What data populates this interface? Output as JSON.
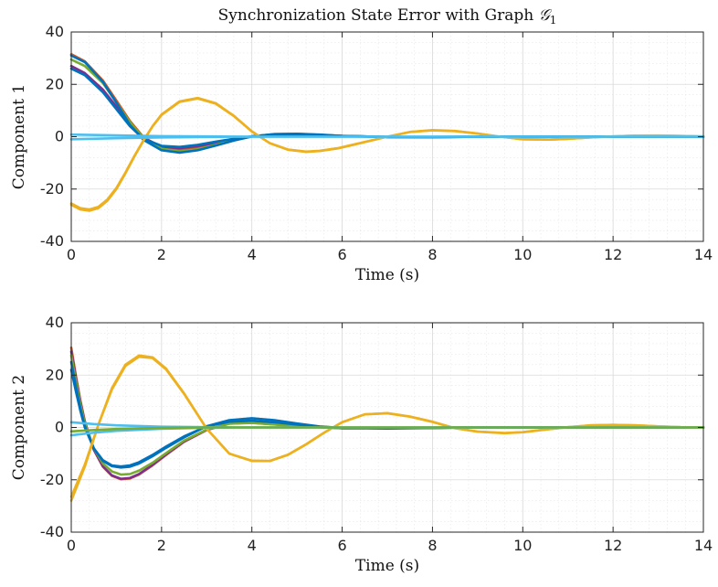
{
  "figure": {
    "title_text": "Synchronization State Error with Graph ",
    "title_symbol": "𝒢",
    "title_subscript": "1"
  },
  "chart_data": [
    {
      "type": "line",
      "title": "Synchronization State Error with Graph 𝒢1",
      "xlabel": "Time (s)",
      "ylabel": "Component 1",
      "xlim": [
        0,
        14
      ],
      "ylim": [
        -40,
        40
      ],
      "xticks": [
        "0",
        "2",
        "4",
        "6",
        "8",
        "10",
        "12",
        "14"
      ],
      "yticks": [
        "-40",
        "-20",
        "0",
        "20",
        "40"
      ],
      "grid": {
        "major": true,
        "minor": true
      },
      "series": [
        {
          "color": "#d95319",
          "x": [
            0,
            0.3,
            0.7,
            1.0,
            1.3,
            1.6,
            2.0,
            2.4,
            2.8,
            3.2,
            3.6,
            4.0,
            4.5,
            5.0,
            5.5,
            6.0,
            7.0,
            8.0,
            9.0,
            10.0,
            11.0,
            12.0,
            13.0,
            14.0
          ],
          "y": [
            31.5,
            28.8,
            21.5,
            13.8,
            6.0,
            -0.2,
            -4.1,
            -5.0,
            -4.3,
            -2.8,
            -1.2,
            0.1,
            0.9,
            1.0,
            0.7,
            0.3,
            -0.1,
            -0.15,
            -0.05,
            0.02,
            0.02,
            0.01,
            0.0,
            0.0
          ]
        },
        {
          "color": "#7e2f8e",
          "x": [
            0,
            0.3,
            0.7,
            1.0,
            1.3,
            1.6,
            2.0,
            2.4,
            2.8,
            3.2,
            3.6,
            4.0,
            4.5,
            5.0,
            5.5,
            6.0,
            7.0,
            8.0,
            9.0,
            10.0,
            11.0,
            12.0,
            13.0,
            14.0
          ],
          "y": [
            27.0,
            24.3,
            18.0,
            11.5,
            5.0,
            -0.4,
            -3.8,
            -4.4,
            -3.6,
            -2.3,
            -1.0,
            0.1,
            0.8,
            0.9,
            0.6,
            0.3,
            -0.1,
            -0.1,
            -0.05,
            0.02,
            0.02,
            0.01,
            0.0,
            0.0
          ]
        },
        {
          "color": "#77ac30",
          "x": [
            0,
            0.3,
            0.7,
            1.0,
            1.3,
            1.6,
            2.0,
            2.4,
            2.8,
            3.2,
            3.6,
            4.0,
            4.5,
            5.0,
            5.5,
            6.0,
            7.0,
            8.0,
            9.0,
            10.0,
            11.0,
            12.0,
            13.0,
            14.0
          ],
          "y": [
            29.5,
            27.0,
            20.5,
            13.0,
            5.5,
            -0.5,
            -4.6,
            -5.6,
            -4.8,
            -3.1,
            -1.3,
            0.1,
            1.0,
            1.1,
            0.7,
            0.3,
            -0.1,
            -0.15,
            -0.05,
            0.02,
            0.02,
            0.01,
            0.0,
            0.0
          ]
        },
        {
          "color": "#0072bd",
          "x": [
            0,
            0.3,
            0.7,
            1.0,
            1.3,
            1.6,
            2.0,
            2.4,
            2.8,
            3.2,
            3.6,
            4.0,
            4.5,
            5.0,
            5.5,
            6.0,
            7.0,
            8.0,
            9.0,
            10.0,
            11.0,
            12.0,
            13.0,
            14.0
          ],
          "y": [
            31.0,
            28.5,
            21.0,
            13.0,
            4.5,
            -1.2,
            -5.2,
            -6.1,
            -5.2,
            -3.4,
            -1.5,
            0.1,
            1.0,
            1.1,
            0.8,
            0.3,
            -0.1,
            -0.15,
            -0.05,
            0.02,
            0.02,
            0.01,
            0.0,
            0.0
          ]
        },
        {
          "color": "#0072bd",
          "x": [
            0,
            0.3,
            0.7,
            1.0,
            1.3,
            1.6,
            2.0,
            2.4,
            2.8,
            3.2,
            3.6,
            4.0,
            4.5,
            5.0,
            5.5,
            6.0,
            7.0,
            8.0,
            9.0,
            10.0,
            11.0,
            12.0,
            13.0,
            14.0
          ],
          "y": [
            26.0,
            23.5,
            17.0,
            10.5,
            4.0,
            -0.8,
            -3.5,
            -3.9,
            -3.1,
            -1.9,
            -0.8,
            0.1,
            0.7,
            0.8,
            0.5,
            0.2,
            -0.1,
            -0.1,
            -0.04,
            0.02,
            0.02,
            0.01,
            0.0,
            0.0
          ]
        },
        {
          "color": "#edb120",
          "x": [
            0,
            0.2,
            0.4,
            0.6,
            0.8,
            1.0,
            1.2,
            1.4,
            1.6,
            1.8,
            2.0,
            2.4,
            2.8,
            3.2,
            3.6,
            4.0,
            4.4,
            4.8,
            5.2,
            5.5,
            5.9,
            6.4,
            7.0,
            7.5,
            8.0,
            8.5,
            9.0,
            9.5,
            10.0,
            10.6,
            11.0,
            11.5,
            12.0,
            12.5,
            13.0,
            13.5,
            14.0
          ],
          "y": [
            -26.0,
            -27.8,
            -28.3,
            -27.3,
            -24.5,
            -20.0,
            -14.0,
            -7.5,
            -1.5,
            4.0,
            8.5,
            13.5,
            14.8,
            12.8,
            8.0,
            2.0,
            -2.5,
            -5.0,
            -5.8,
            -5.5,
            -4.5,
            -2.5,
            0.0,
            1.8,
            2.5,
            2.2,
            1.2,
            0.0,
            -1.0,
            -1.1,
            -0.8,
            -0.3,
            0.1,
            0.4,
            0.45,
            0.3,
            0.1
          ]
        },
        {
          "color": "#edb120",
          "x": [
            0,
            0.2,
            0.4,
            0.6,
            0.8,
            1.0,
            1.2,
            1.4,
            1.6,
            1.8,
            2.0,
            2.4,
            2.8,
            3.2,
            3.6,
            4.0,
            4.4,
            4.8,
            5.2,
            5.5,
            5.9,
            6.4,
            7.0,
            7.5,
            8.0,
            8.5,
            9.0,
            9.5,
            10.0,
            10.6,
            11.0,
            11.5,
            12.0,
            12.5,
            13.0,
            13.5,
            14.0
          ],
          "y": [
            -25.5,
            -27.3,
            -27.8,
            -26.8,
            -24.0,
            -19.6,
            -13.7,
            -7.3,
            -1.4,
            3.9,
            8.3,
            13.3,
            14.6,
            12.6,
            7.9,
            2.0,
            -2.5,
            -4.9,
            -5.7,
            -5.4,
            -4.4,
            -2.4,
            0.0,
            1.8,
            2.4,
            2.1,
            1.2,
            0.0,
            -1.0,
            -1.1,
            -0.8,
            -0.3,
            0.1,
            0.4,
            0.4,
            0.3,
            0.1
          ]
        },
        {
          "color": "#4dbeee",
          "x": [
            0,
            1,
            2,
            3,
            4,
            5,
            6,
            7,
            8,
            9,
            10,
            11,
            12,
            13,
            14
          ],
          "y": [
            -1.0,
            -0.6,
            -0.3,
            -0.1,
            0.0,
            0.0,
            0.0,
            0.0,
            0.0,
            0.0,
            0.0,
            0.0,
            0.0,
            0.0,
            0.0
          ]
        },
        {
          "color": "#4dbeee",
          "x": [
            0,
            1,
            2,
            3,
            4,
            5,
            6,
            7,
            8,
            9,
            10,
            11,
            12,
            13,
            14
          ],
          "y": [
            0.8,
            0.5,
            0.2,
            0.1,
            0.0,
            0.0,
            0.0,
            0.0,
            0.0,
            0.0,
            0.0,
            0.0,
            0.0,
            0.0,
            0.0
          ]
        }
      ]
    },
    {
      "type": "line",
      "xlabel": "Time (s)",
      "ylabel": "Component 2",
      "xlim": [
        0,
        14
      ],
      "ylim": [
        -40,
        40
      ],
      "xticks": [
        "0",
        "2",
        "4",
        "6",
        "8",
        "10",
        "12",
        "14"
      ],
      "yticks": [
        "-40",
        "-20",
        "0",
        "20",
        "40"
      ],
      "grid": {
        "major": true,
        "minor": true
      },
      "series": [
        {
          "color": "#d95319",
          "x": [
            0,
            0.1,
            0.2,
            0.3,
            0.5,
            0.7,
            0.9,
            1.1,
            1.3,
            1.5,
            1.8,
            2.1,
            2.5,
            3.0,
            3.5,
            4.0,
            4.5,
            5.0,
            6.0,
            7.0,
            8.0,
            9.0,
            10.0,
            11.0,
            12.0,
            13.0,
            14.0
          ],
          "y": [
            30.5,
            20.0,
            10.5,
            2.5,
            -8.5,
            -15.0,
            -18.5,
            -19.8,
            -19.5,
            -18.0,
            -14.5,
            -10.5,
            -5.5,
            -1.0,
            1.5,
            1.8,
            1.2,
            0.5,
            -0.3,
            -0.2,
            -0.1,
            0.0,
            0.0,
            0.0,
            0.0,
            0.0,
            0.0
          ]
        },
        {
          "color": "#7e2f8e",
          "x": [
            0,
            0.1,
            0.2,
            0.3,
            0.5,
            0.7,
            0.9,
            1.1,
            1.3,
            1.5,
            1.8,
            2.1,
            2.5,
            3.0,
            3.5,
            4.0,
            4.5,
            5.0,
            6.0,
            7.0,
            8.0,
            9.0,
            10.0,
            11.0,
            12.0,
            13.0,
            14.0
          ],
          "y": [
            29.0,
            19.0,
            9.8,
            2.0,
            -8.5,
            -14.8,
            -18.3,
            -19.6,
            -19.3,
            -17.8,
            -14.3,
            -10.3,
            -5.3,
            -0.9,
            1.5,
            1.8,
            1.2,
            0.5,
            -0.3,
            -0.2,
            -0.1,
            0.0,
            0.0,
            0.0,
            0.0,
            0.0,
            0.0
          ]
        },
        {
          "color": "#77ac30",
          "x": [
            0,
            0.1,
            0.2,
            0.3,
            0.5,
            0.7,
            0.9,
            1.1,
            1.3,
            1.5,
            1.8,
            2.1,
            2.5,
            3.0,
            3.5,
            4.0,
            4.5,
            5.0,
            6.0,
            7.0,
            8.0,
            9.0,
            10.0,
            11.0,
            12.0,
            13.0,
            14.0
          ],
          "y": [
            27.5,
            18.0,
            9.0,
            1.5,
            -8.0,
            -13.8,
            -16.8,
            -18.0,
            -17.8,
            -16.5,
            -13.5,
            -9.8,
            -5.0,
            -0.8,
            1.4,
            1.7,
            1.1,
            0.5,
            -0.3,
            -0.2,
            -0.1,
            0.0,
            0.0,
            0.0,
            0.0,
            0.0,
            0.0
          ]
        },
        {
          "color": "#0072bd",
          "x": [
            0,
            0.1,
            0.2,
            0.3,
            0.5,
            0.7,
            0.9,
            1.1,
            1.3,
            1.5,
            1.8,
            2.1,
            2.5,
            3.0,
            3.5,
            4.0,
            4.5,
            5.0,
            5.5,
            6.0,
            7.0,
            8.0,
            9.0,
            10.0,
            11.0,
            12.0,
            13.0,
            14.0
          ],
          "y": [
            25.0,
            16.0,
            7.5,
            0.5,
            -8.0,
            -12.8,
            -14.8,
            -15.3,
            -15.0,
            -13.8,
            -11.0,
            -7.8,
            -3.8,
            0.5,
            2.8,
            3.5,
            2.8,
            1.5,
            0.4,
            -0.2,
            -0.4,
            -0.2,
            0.0,
            0.0,
            0.0,
            0.0,
            0.0,
            0.0
          ]
        },
        {
          "color": "#0072bd",
          "x": [
            0,
            0.1,
            0.2,
            0.3,
            0.5,
            0.7,
            0.9,
            1.1,
            1.3,
            1.5,
            1.8,
            2.1,
            2.5,
            3.0,
            3.5,
            4.0,
            4.5,
            5.0,
            5.5,
            6.0,
            7.0,
            8.0,
            9.0,
            10.0,
            11.0,
            12.0,
            13.0,
            14.0
          ],
          "y": [
            22.0,
            14.0,
            6.5,
            0.0,
            -8.0,
            -12.5,
            -14.5,
            -14.9,
            -14.5,
            -13.3,
            -10.5,
            -7.3,
            -3.4,
            0.4,
            2.2,
            2.6,
            2.0,
            1.1,
            0.3,
            -0.2,
            -0.3,
            -0.15,
            0.0,
            0.0,
            0.0,
            0.0,
            0.0,
            0.0
          ]
        },
        {
          "color": "#edb120",
          "x": [
            0,
            0.3,
            0.6,
            0.9,
            1.2,
            1.5,
            1.8,
            2.1,
            2.5,
            3.0,
            3.5,
            4.0,
            4.4,
            4.8,
            5.2,
            5.6,
            6.0,
            6.5,
            7.0,
            7.5,
            8.0,
            8.5,
            9.0,
            9.6,
            10.0,
            10.5,
            11.0,
            11.5,
            12.0,
            12.5,
            13.0,
            13.5,
            14.0
          ],
          "y": [
            -28.0,
            -15.0,
            1.0,
            15.0,
            24.0,
            27.5,
            26.8,
            22.5,
            13.0,
            -0.5,
            -10.0,
            -12.8,
            -12.8,
            -10.5,
            -6.5,
            -2.0,
            2.0,
            5.0,
            5.5,
            4.2,
            2.2,
            -0.3,
            -1.6,
            -2.2,
            -1.8,
            -0.8,
            0.1,
            0.8,
            1.0,
            0.8,
            0.4,
            0.1,
            0.0
          ]
        },
        {
          "color": "#edb120",
          "x": [
            0,
            0.3,
            0.6,
            0.9,
            1.2,
            1.5,
            1.8,
            2.1,
            2.5,
            3.0,
            3.5,
            4.0,
            4.4,
            4.8,
            5.2,
            5.6,
            6.0,
            6.5,
            7.0,
            7.5,
            8.0,
            8.5,
            9.0,
            9.6,
            10.0,
            10.5,
            11.0,
            11.5,
            12.0,
            12.5,
            13.0,
            13.5,
            14.0
          ],
          "y": [
            -26.5,
            -14.2,
            1.0,
            14.5,
            23.5,
            27.0,
            26.5,
            22.2,
            12.8,
            -0.5,
            -10.0,
            -12.7,
            -12.8,
            -10.4,
            -6.4,
            -2.0,
            2.0,
            5.0,
            5.4,
            4.1,
            2.1,
            -0.3,
            -1.6,
            -2.1,
            -1.8,
            -0.8,
            0.1,
            0.8,
            1.0,
            0.8,
            0.4,
            0.1,
            0.0
          ]
        },
        {
          "color": "#4dbeee",
          "x": [
            0,
            0.5,
            1,
            2,
            3,
            4,
            5,
            6,
            7,
            8,
            9,
            10,
            11,
            12,
            13,
            14
          ],
          "y": [
            -3.0,
            -2.0,
            -1.3,
            -0.5,
            -0.1,
            0.0,
            0.0,
            0.0,
            0.0,
            0.0,
            0.0,
            0.0,
            0.0,
            0.0,
            0.0,
            0.0
          ]
        },
        {
          "color": "#4dbeee",
          "x": [
            0,
            0.5,
            1,
            2,
            3,
            4,
            5,
            6,
            7,
            8,
            9,
            10,
            11,
            12,
            13,
            14
          ],
          "y": [
            2.0,
            1.3,
            0.8,
            0.3,
            0.1,
            0.0,
            0.0,
            0.0,
            0.0,
            0.0,
            0.0,
            0.0,
            0.0,
            0.0,
            0.0,
            0.0
          ]
        },
        {
          "color": "#77ac30",
          "x": [
            0,
            0.5,
            1,
            2,
            3,
            4,
            5,
            6,
            7,
            8,
            9,
            10,
            11,
            12,
            13,
            14
          ],
          "y": [
            -1.5,
            -1.0,
            -0.6,
            -0.2,
            0.0,
            0.0,
            0.0,
            0.0,
            0.0,
            0.0,
            0.0,
            0.0,
            0.0,
            0.0,
            0.0,
            0.0
          ]
        }
      ]
    }
  ]
}
